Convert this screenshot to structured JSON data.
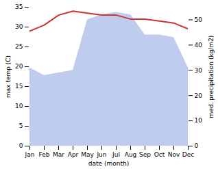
{
  "chart_data": {
    "type": "line",
    "xlabel": "date (month)",
    "ylabel": "max temp (C)",
    "y2label": "med. precipitation (kg/m2)",
    "categories": [
      "Jan",
      "Feb",
      "Mar",
      "Apr",
      "May",
      "Jun",
      "Jul",
      "Aug",
      "Sep",
      "Oct",
      "Nov",
      "Dec"
    ],
    "series": [
      {
        "type": "area",
        "axis": "y2",
        "color": "#c0ccee",
        "values": [
          31,
          28,
          29,
          30,
          50,
          52,
          53,
          52,
          44,
          44,
          43,
          31
        ]
      },
      {
        "type": "line",
        "color": "#cc3333",
        "values": [
          29,
          30.5,
          33,
          34,
          33.5,
          33,
          33,
          32,
          32,
          31.5,
          31,
          29.5
        ]
      }
    ],
    "ylim": [
      0,
      35
    ],
    "yticks": [
      0,
      5,
      10,
      15,
      20,
      25,
      30,
      35
    ],
    "y2lim": [
      0,
      55
    ],
    "y2ticks": [
      0,
      10,
      20,
      30,
      40,
      50
    ],
    "grid": false
  }
}
